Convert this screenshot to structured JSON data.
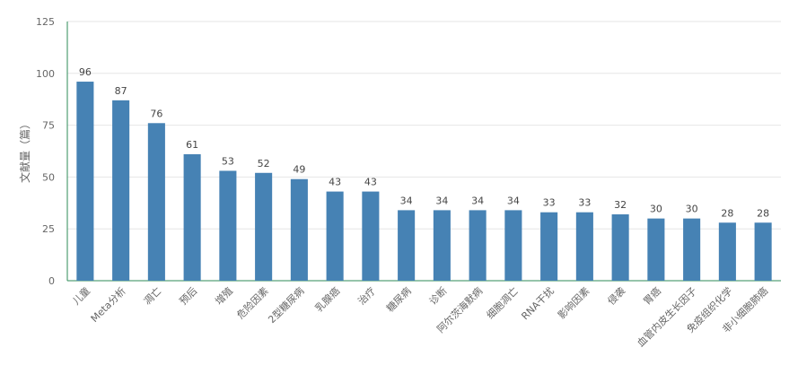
{
  "chart_data": {
    "type": "bar",
    "ylabel": "文献量（篇）",
    "ylim": [
      0,
      125
    ],
    "yticks": [
      0,
      25,
      50,
      75,
      100,
      125
    ],
    "grid": true,
    "bar_color": "#4682b4",
    "categories": [
      "儿童",
      "Meta分析",
      "凋亡",
      "预后",
      "增殖",
      "危险因素",
      "2型糖尿病",
      "乳腺癌",
      "治疗",
      "糖尿病",
      "诊断",
      "阿尔茨海默病",
      "细胞凋亡",
      "RNA干扰",
      "影响因素",
      "侵袭",
      "胃癌",
      "血管内皮生长因子",
      "免疫组织化学",
      "非小细胞肺癌"
    ],
    "values": [
      96,
      87,
      76,
      61,
      53,
      52,
      49,
      43,
      43,
      34,
      34,
      34,
      34,
      33,
      33,
      32,
      30,
      30,
      28,
      28
    ]
  }
}
